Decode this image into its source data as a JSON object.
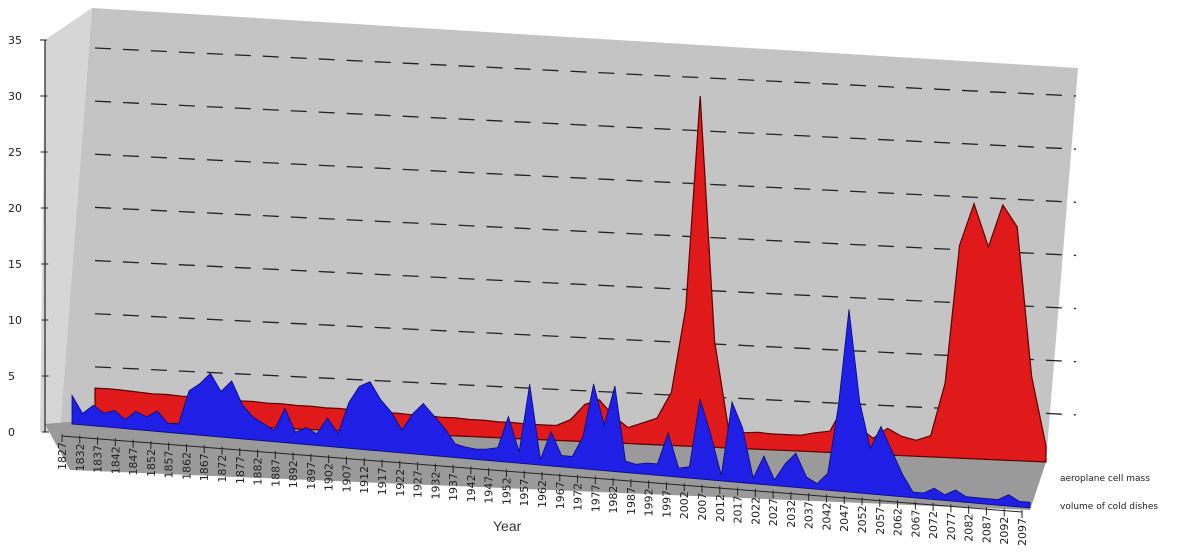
{
  "chart_data": {
    "type": "area",
    "view": "3d",
    "xlabel": "Year",
    "ylabel": "",
    "ylim": [
      0,
      35
    ],
    "y_ticks": [
      "0",
      "5",
      "10",
      "15",
      "20",
      "25",
      "30",
      "35"
    ],
    "x_tick_labels": [
      "1827",
      "1832",
      "1837",
      "1842",
      "1847",
      "1852",
      "1857",
      "1862",
      "1867",
      "1872",
      "1877",
      "1882",
      "1887",
      "1892",
      "1897",
      "1902",
      "1907",
      "1912",
      "1917",
      "1922",
      "1927",
      "1932",
      "1937",
      "1942",
      "1947",
      "1952",
      "1957",
      "1962",
      "1967",
      "1972",
      "1977",
      "1982",
      "1987",
      "1992",
      "1997",
      "2002",
      "2007",
      "2012",
      "2017",
      "2022",
      "2027",
      "2032",
      "2037",
      "2042",
      "2047",
      "2052",
      "2057",
      "2062",
      "2067",
      "2072",
      "2077",
      "2082",
      "2087",
      "2092",
      "2097"
    ],
    "grid": true,
    "legend_position": "right",
    "colors": {
      "front": "#1f1fe6",
      "back": "#e0191b",
      "wall": "#c4c4c4",
      "floor": "#9a9a9a"
    },
    "series": [
      {
        "name": "aeroplane cell mass",
        "values": [
          3.0,
          3.0,
          2.9,
          2.8,
          2.7,
          2.7,
          2.6,
          2.6,
          2.5,
          2.5,
          2.4,
          2.4,
          2.3,
          2.3,
          2.2,
          2.2,
          2.1,
          2.1,
          2.0,
          2.0,
          1.9,
          1.9,
          1.8,
          1.8,
          1.7,
          1.7,
          1.6,
          1.6,
          1.5,
          1.5,
          1.4,
          1.4,
          1.4,
          2.0,
          3.5,
          4.0,
          2.5,
          1.5,
          2.0,
          2.5,
          5.0,
          13.0,
          33.0,
          10.0,
          1.5,
          1.5,
          1.6,
          1.5,
          1.5,
          1.5,
          1.8,
          2.0,
          4.5,
          2.5,
          1.5,
          2.5,
          1.8,
          1.5,
          2.0,
          7.0,
          20.0,
          24.0,
          20.0,
          24.0,
          22.0,
          8.0,
          1.5
        ]
      },
      {
        "name": "volume of cold dishes",
        "values": [
          2.5,
          1.0,
          1.8,
          1.2,
          1.5,
          0.8,
          1.6,
          1.2,
          1.8,
          0.8,
          0.8,
          3.8,
          4.5,
          5.5,
          4.0,
          5.0,
          3.0,
          2.0,
          1.5,
          1.0,
          3.0,
          1.0,
          1.5,
          1.0,
          2.5,
          1.2,
          4.0,
          5.5,
          6.0,
          4.5,
          3.5,
          2.0,
          3.5,
          4.5,
          3.5,
          2.5,
          1.2,
          1.0,
          0.9,
          1.0,
          1.2,
          4.0,
          1.0,
          7.0,
          0.5,
          3.0,
          1.0,
          1.0,
          2.8,
          7.5,
          4.0,
          7.5,
          1.0,
          0.8,
          1.0,
          1.0,
          3.8,
          0.8,
          1.0,
          7.0,
          4.0,
          0.5,
          7.0,
          4.8,
          0.5,
          2.5,
          0.5,
          2.0,
          3.0,
          1.0,
          0.5,
          1.5,
          7.5,
          16.0,
          8.0,
          4.0,
          6.0,
          4.0,
          2.0,
          0.5,
          0.5,
          1.0,
          0.5,
          1.0,
          0.5,
          0.5,
          0.5,
          0.5,
          1.0,
          0.5,
          0.5
        ]
      }
    ]
  }
}
